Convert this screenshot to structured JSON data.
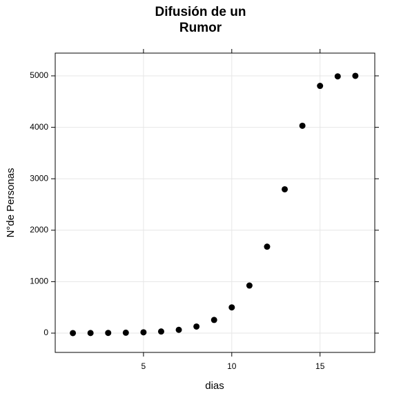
{
  "chart_data": {
    "type": "scatter",
    "title": "Difusión de un\nRumor",
    "x_label": "dias",
    "y_label": "N°de Personas",
    "x": [
      1,
      2,
      3,
      4,
      5,
      6,
      7,
      8,
      9,
      10,
      11,
      12,
      13,
      14,
      15,
      16,
      17
    ],
    "series": [
      {
        "color": "#000000",
        "values": [
          1,
          2,
          4,
          8,
          16,
          32,
          64,
          128,
          256,
          500,
          925,
          1680,
          2795,
          4030,
          4805,
          4990,
          5000
        ]
      }
    ],
    "xlim": [
      0,
      18.1
    ],
    "xticks": [
      5,
      10,
      15
    ],
    "ylim": [
      -375,
      5442
    ],
    "yticks": [
      0,
      1000,
      2000,
      3000,
      4000,
      5000
    ],
    "grid": true
  }
}
